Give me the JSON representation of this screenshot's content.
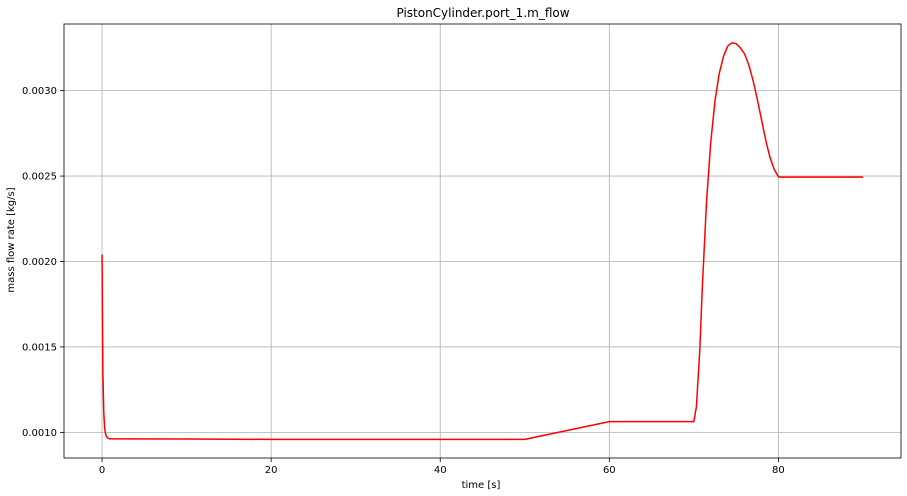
{
  "chart_data": {
    "type": "line",
    "title": "PistonCylinder.port_1.m_flow",
    "xlabel": "time [s]",
    "ylabel": "mass flow rate [kg/s]",
    "xlim": [
      -4.5,
      94.5
    ],
    "ylim": [
      0.00085,
      0.00339
    ],
    "grid": true,
    "x_ticks": [
      0,
      20,
      40,
      60,
      80
    ],
    "x_tick_labels": [
      "0",
      "20",
      "40",
      "60",
      "80"
    ],
    "y_ticks": [
      0.001,
      0.0015,
      0.002,
      0.0025,
      0.003
    ],
    "y_tick_labels": [
      "0.0010",
      "0.0015",
      "0.0020",
      "0.0025",
      "0.0030"
    ],
    "series": [
      {
        "color": "#ff0000",
        "x": [
          0,
          0.05,
          0.1,
          0.2,
          0.3,
          0.4,
          0.5,
          0.7,
          1.0,
          10,
          20,
          30,
          40,
          50,
          60,
          70,
          70.3,
          70.7,
          71,
          71.5,
          72,
          72.5,
          73,
          73.5,
          74,
          74.5,
          75,
          75.5,
          76,
          76.5,
          77,
          77.5,
          78,
          78.5,
          79,
          79.5,
          80,
          80.2,
          85,
          90
        ],
        "y": [
          0.00204,
          0.00165,
          0.00135,
          0.00112,
          0.00103,
          0.000995,
          0.000978,
          0.000965,
          0.000962,
          0.000961,
          0.000959,
          0.000959,
          0.000959,
          0.000959,
          0.001063,
          0.001063,
          0.00115,
          0.00148,
          0.00185,
          0.00235,
          0.0027,
          0.00294,
          0.0031,
          0.0032,
          0.00326,
          0.00328,
          0.003275,
          0.00325,
          0.003215,
          0.00315,
          0.00306,
          0.00295,
          0.00283,
          0.00271,
          0.00261,
          0.00254,
          0.002496,
          0.002494,
          0.002494,
          0.002494
        ]
      }
    ]
  }
}
